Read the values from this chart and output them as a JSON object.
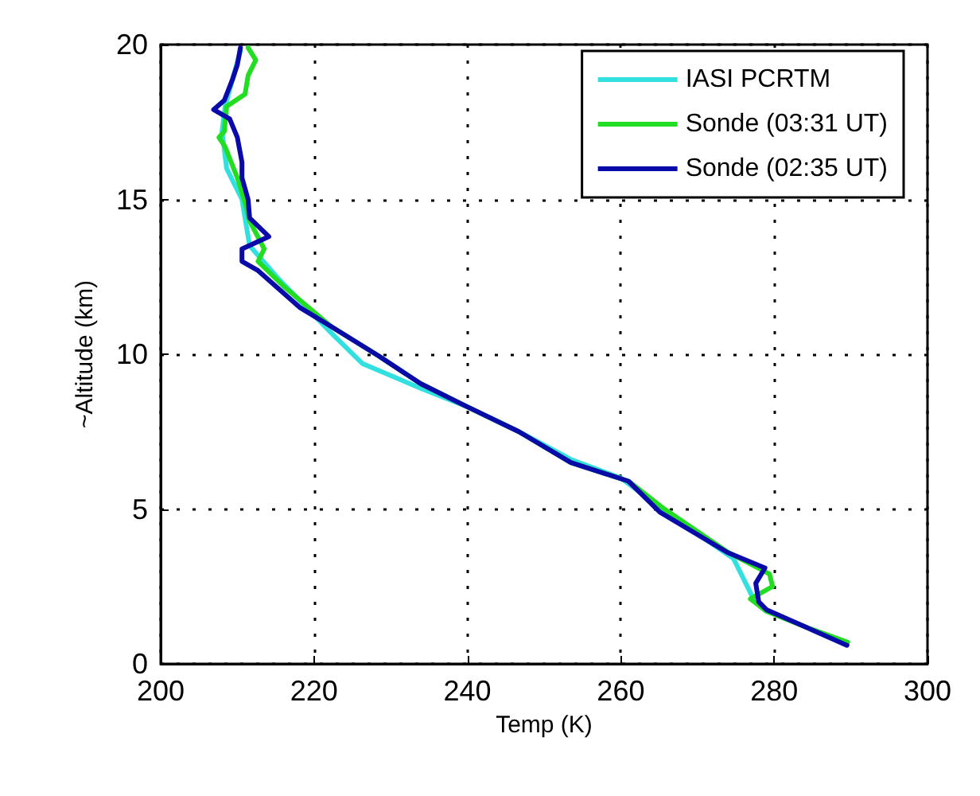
{
  "chart_data": {
    "type": "line",
    "xlabel": "Temp (K)",
    "ylabel": "~Altitude (km)",
    "xlim": [
      200,
      300
    ],
    "xticks": [
      200,
      220,
      240,
      260,
      280,
      300
    ],
    "ylim": [
      0,
      20
    ],
    "yticks": [
      0,
      5,
      10,
      15,
      20
    ],
    "grid": true,
    "legend": "top right",
    "line_style": "solid",
    "marker": "none",
    "series": [
      {
        "name": "IASI PCRTM",
        "color": "#33e0e0",
        "x": [
          279,
          277.5,
          276.7,
          274.7,
          270,
          265.5,
          260,
          253.5,
          246.7,
          240,
          233.9,
          226.3,
          222.2,
          215.5,
          211.6,
          210.6,
          208.6,
          208,
          208.4,
          209.4,
          210.4
        ],
        "values": [
          1.7,
          2.0,
          2.4,
          3.4,
          4.2,
          5.0,
          6.0,
          6.6,
          7.5,
          8.3,
          8.9,
          9.7,
          10.7,
          12.4,
          13.5,
          15.0,
          16.0,
          17.2,
          18.0,
          18.9,
          19.8
        ]
      },
      {
        "name": "Sonde (03:31 UT)",
        "color": "#22dd22",
        "x": [
          289.6,
          284,
          279,
          276.9,
          279.8,
          279.4,
          274,
          265.7,
          261,
          253.5,
          246.7,
          240,
          233.9,
          228.4,
          222.2,
          216,
          212.7,
          213.5,
          211.6,
          211,
          210,
          208.4,
          207.6,
          208.3,
          208.6,
          211,
          211.4,
          212.4,
          211.4
        ],
        "values": [
          0.7,
          1.2,
          1.7,
          2.1,
          2.5,
          2.9,
          3.6,
          5.0,
          5.9,
          6.5,
          7.5,
          8.3,
          9.05,
          9.95,
          10.9,
          12.2,
          13.0,
          13.4,
          14.3,
          14.9,
          15.7,
          16.7,
          17.0,
          17.2,
          18.0,
          18.4,
          19.0,
          19.5,
          19.9
        ]
      },
      {
        "name": "Sonde (02:35 UT)",
        "color": "#0a0aa8",
        "x": [
          289.5,
          284,
          279,
          278,
          277.6,
          278.8,
          273.9,
          265.1,
          261,
          253.5,
          246.7,
          240,
          233.9,
          228.4,
          222.2,
          218.2,
          212.7,
          210.6,
          210.6,
          214.1,
          211.6,
          211.4,
          210.6,
          210.6,
          210,
          209,
          206.9,
          208.3,
          209.4,
          210,
          210.4
        ],
        "values": [
          0.6,
          1.2,
          1.75,
          2.0,
          2.6,
          3.1,
          3.6,
          4.9,
          5.9,
          6.5,
          7.5,
          8.3,
          9.05,
          9.95,
          10.9,
          11.5,
          12.7,
          13.0,
          13.4,
          13.8,
          14.4,
          15.0,
          15.7,
          16.2,
          17.0,
          17.6,
          17.9,
          18.2,
          18.9,
          19.35,
          19.9
        ]
      }
    ]
  }
}
